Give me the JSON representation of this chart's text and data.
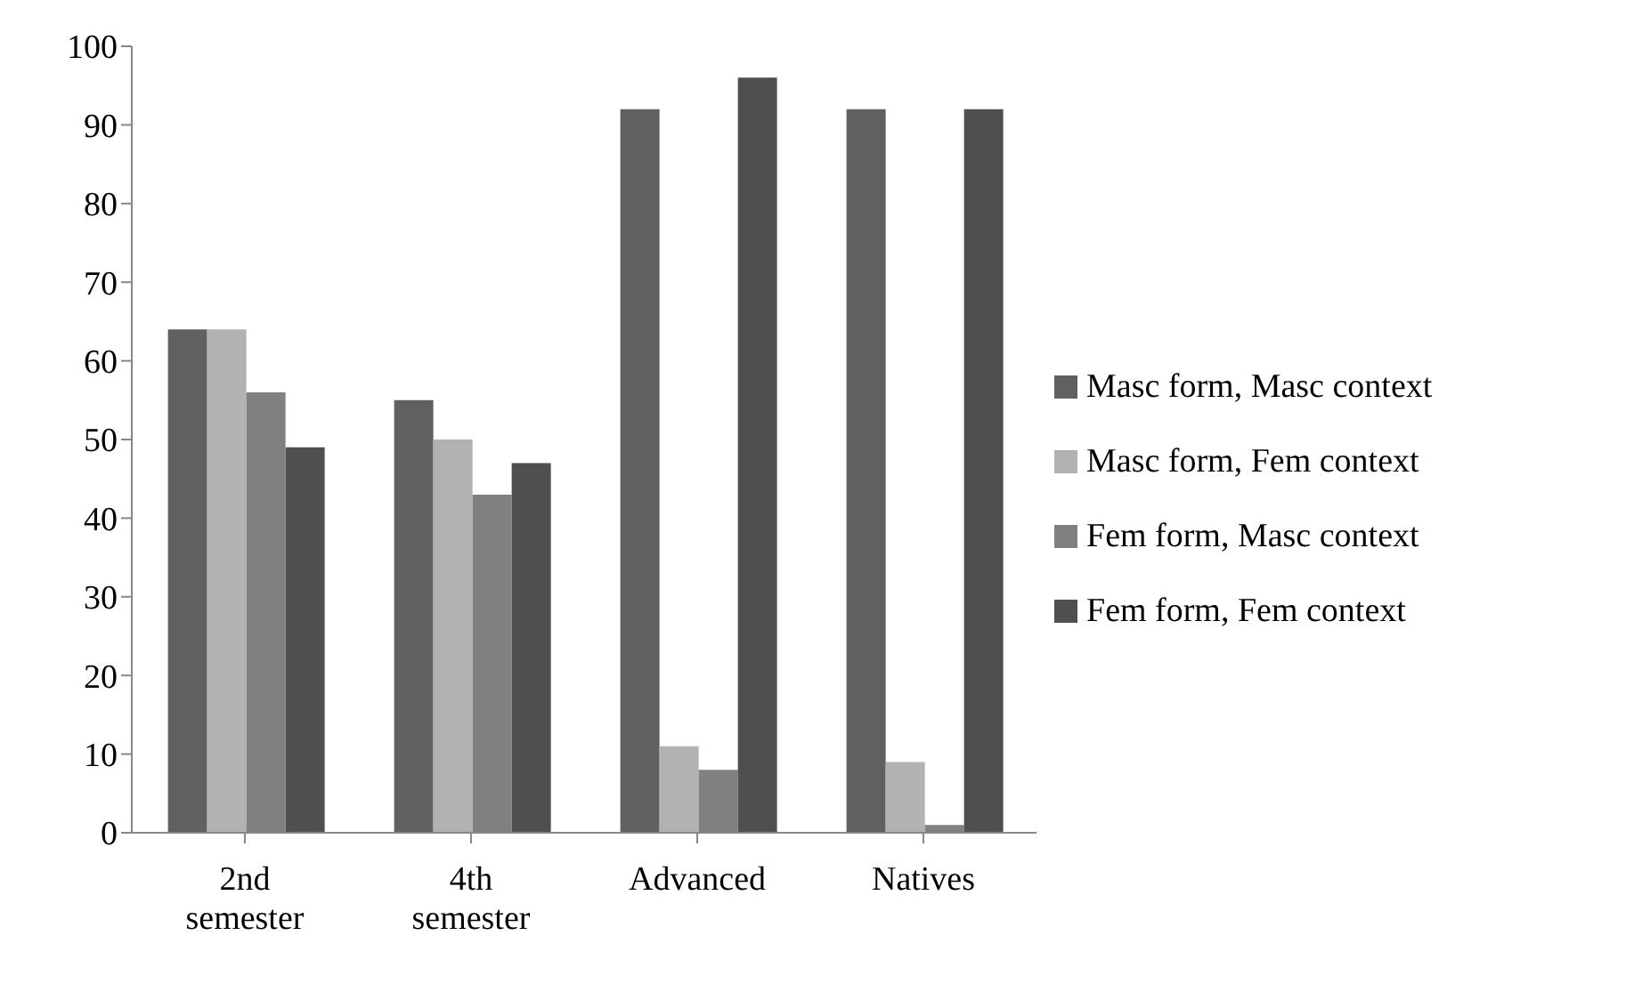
{
  "chart_data": {
    "type": "bar",
    "categories": [
      "2nd semester",
      "4th semester",
      "Advanced",
      "Natives"
    ],
    "series": [
      {
        "name": "Masc form, Masc context",
        "color": "#606060",
        "values": [
          64,
          55,
          92,
          92
        ]
      },
      {
        "name": "Masc form, Fem context",
        "color": "#b2b2b2",
        "values": [
          64,
          50,
          11,
          9
        ]
      },
      {
        "name": "Fem form, Masc context",
        "color": "#808080",
        "values": [
          56,
          43,
          8,
          1
        ]
      },
      {
        "name": "Fem form, Fem context",
        "color": "#4f4f4f",
        "values": [
          49,
          47,
          96,
          92
        ]
      }
    ],
    "ylim": [
      0,
      100
    ],
    "yticks": [
      0,
      10,
      20,
      30,
      40,
      50,
      60,
      70,
      80,
      90,
      100
    ],
    "grid": false,
    "legend": "right"
  }
}
